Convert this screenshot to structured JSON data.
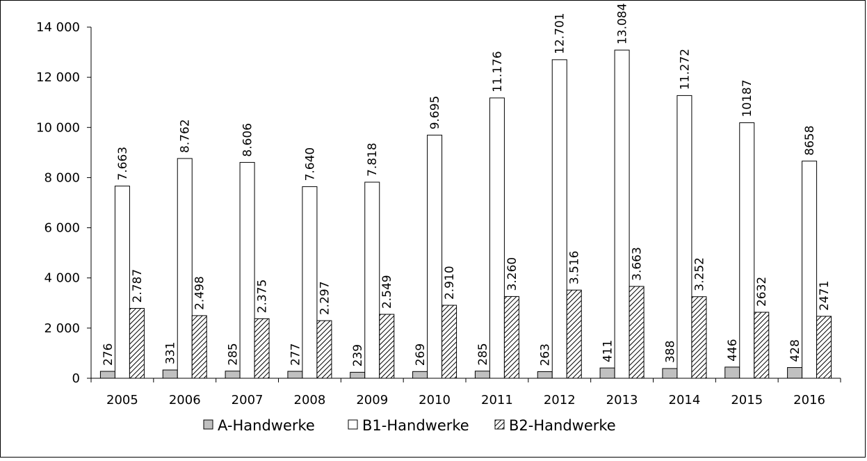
{
  "chart_data": {
    "type": "bar",
    "categories": [
      "2005",
      "2006",
      "2007",
      "2008",
      "2009",
      "2010",
      "2011",
      "2012",
      "2013",
      "2014",
      "2015",
      "2016"
    ],
    "series": [
      {
        "name": "A-Handwerke",
        "values": [
          276,
          331,
          285,
          277,
          239,
          269,
          285,
          263,
          411,
          388,
          446,
          428
        ],
        "labels": [
          "276",
          "331",
          "285",
          "277",
          "239",
          "269",
          "285",
          "263",
          "411",
          "388",
          "446",
          "428"
        ],
        "fill": "#c0c0c0",
        "pattern": "solid"
      },
      {
        "name": "B1-Handwerke",
        "values": [
          7663,
          8762,
          8606,
          7640,
          7818,
          9695,
          11176,
          12701,
          13084,
          11272,
          10187,
          8658
        ],
        "labels": [
          "7.663",
          "8.762",
          "8.606",
          "7.640",
          "7.818",
          "9.695",
          "11.176",
          "12.701",
          "13.084",
          "11.272",
          "10187",
          "8658"
        ],
        "fill": "#ffffff",
        "pattern": "solid"
      },
      {
        "name": "B2-Handwerke",
        "values": [
          2787,
          2498,
          2375,
          2297,
          2549,
          2910,
          3260,
          3516,
          3663,
          3252,
          2632,
          2471
        ],
        "labels": [
          "2.787",
          "2.498",
          "2.375",
          "2.297",
          "2.549",
          "2.910",
          "3.260",
          "3.516",
          "3.663",
          "3.252",
          "2632",
          "2471"
        ],
        "fill": "#ffffff",
        "pattern": "diagonal-hatch"
      }
    ],
    "ylim": [
      0,
      14000
    ],
    "yticks": [
      0,
      2000,
      4000,
      6000,
      8000,
      10000,
      12000,
      14000
    ],
    "ytick_labels": [
      "0",
      "2 000",
      "4 000",
      "6 000",
      "8 000",
      "10 000",
      "12 000",
      "14 000"
    ],
    "xlabel": "",
    "ylabel": "",
    "grid": false,
    "legend": "bottom"
  }
}
